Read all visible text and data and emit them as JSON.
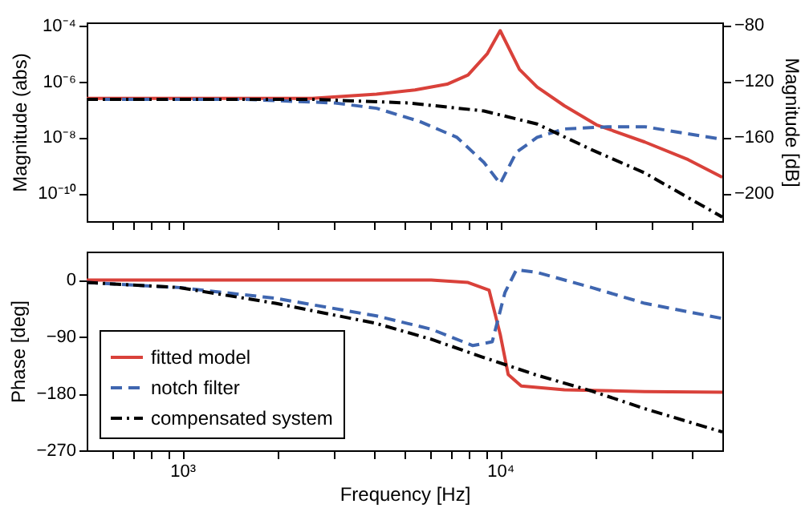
{
  "chart_data": [
    {
      "type": "line",
      "ylabel": "Magnitude (abs)",
      "y2label": "Magnitude [dB]",
      "log": "xy",
      "xlim": [
        500,
        50000
      ],
      "ylim": [
        1e-11,
        0.00013
      ],
      "y2lim": [
        -220,
        -78
      ],
      "xticks": [
        {
          "value": 600,
          "label": null
        },
        {
          "value": 700,
          "label": null
        },
        {
          "value": 800,
          "label": null
        },
        {
          "value": 900,
          "label": null
        },
        {
          "value": 1000,
          "label": null
        },
        {
          "value": 2000,
          "label": null
        },
        {
          "value": 3000,
          "label": null
        },
        {
          "value": 4000,
          "label": null
        },
        {
          "value": 5000,
          "label": null
        },
        {
          "value": 6000,
          "label": null
        },
        {
          "value": 7000,
          "label": null
        },
        {
          "value": 8000,
          "label": null
        },
        {
          "value": 9000,
          "label": null
        },
        {
          "value": 10000,
          "label": null
        },
        {
          "value": 20000,
          "label": null
        },
        {
          "value": 30000,
          "label": null
        },
        {
          "value": 40000,
          "label": null
        }
      ],
      "yticks": [
        {
          "value": 0.0001,
          "label": "10⁻⁴"
        },
        {
          "value": 1e-06,
          "label": "10⁻⁶"
        },
        {
          "value": 1e-08,
          "label": "10⁻⁸"
        },
        {
          "value": 1e-10,
          "label": "10⁻¹⁰"
        }
      ],
      "y2ticks": [
        {
          "value": -80,
          "label": "−80"
        },
        {
          "value": -120,
          "label": "−120"
        },
        {
          "value": -160,
          "label": "−160"
        },
        {
          "value": -200,
          "label": "−200"
        }
      ],
      "tick_labels": "y",
      "grid": false,
      "legend": false,
      "series": [
        {
          "color": "#d9413a",
          "line_style": "solid",
          "x": [
            500,
            869,
            1556,
            2563,
            4083,
            5395,
            6808,
            7922,
            9115,
            10000,
            11500,
            13070,
            15920,
            20090,
            28500,
            39000,
            50000
          ],
          "values": [
            2.5e-07,
            2.5e-07,
            2.5e-07,
            2.5e-07,
            3.5e-07,
            5e-07,
            8e-07,
            1.7e-06,
            1e-05,
            6.6e-05,
            2.7e-06,
            6.3e-07,
            1.35e-07,
            2.8e-08,
            6.8e-09,
            1.6e-09,
            3.7e-10
          ]
        },
        {
          "color": "#3f66b0",
          "line_style": "dashed",
          "x": [
            500,
            1556,
            3020,
            4083,
            5585,
            7310,
            8890,
            10000,
            11240,
            13070,
            15920,
            21800,
            28500,
            50000
          ],
          "values": [
            2.3e-07,
            2.3e-07,
            1.7e-07,
            1.1e-07,
            3.7e-08,
            1e-08,
            1.26e-09,
            2.2e-10,
            2.9e-09,
            1e-08,
            2e-08,
            2.4e-08,
            2.4e-08,
            8.5e-09
          ]
        },
        {
          "color": "#000000",
          "line_style": "dashdot",
          "x": [
            500,
            1556,
            2563,
            5150,
            8890,
            13070,
            19400,
            28500,
            50000
          ],
          "values": [
            2.3e-07,
            2.3e-07,
            2.3e-07,
            1.7e-07,
            8.8e-08,
            3e-08,
            3.6e-09,
            5.3e-10,
            1.4e-11
          ]
        }
      ]
    },
    {
      "type": "line",
      "xlabel": "Frequency [Hz]",
      "ylabel": "Phase [deg]",
      "log": "x",
      "xlim": [
        500,
        50000
      ],
      "ylim": [
        -270,
        45
      ],
      "xticks": [
        {
          "value": 600,
          "label": null
        },
        {
          "value": 700,
          "label": null
        },
        {
          "value": 800,
          "label": null
        },
        {
          "value": 900,
          "label": null
        },
        {
          "value": 1000,
          "label": "10³"
        },
        {
          "value": 2000,
          "label": null
        },
        {
          "value": 3000,
          "label": null
        },
        {
          "value": 4000,
          "label": null
        },
        {
          "value": 5000,
          "label": null
        },
        {
          "value": 6000,
          "label": null
        },
        {
          "value": 7000,
          "label": null
        },
        {
          "value": 8000,
          "label": null
        },
        {
          "value": 9000,
          "label": null
        },
        {
          "value": 10000,
          "label": "10⁴"
        },
        {
          "value": 20000,
          "label": null
        },
        {
          "value": 30000,
          "label": null
        },
        {
          "value": 40000,
          "label": null
        }
      ],
      "yticks": [
        0,
        {
          "value": -90,
          "label": "−90"
        },
        {
          "value": -180,
          "label": "−180"
        },
        {
          "value": -270,
          "label": "−270"
        }
      ],
      "grid": false,
      "legend": "bottom left",
      "series": [
        {
          "name": "fitted model",
          "color": "#d9413a",
          "line_style": "solid",
          "x": [
            500,
            1556,
            3020,
            6070,
            7922,
            9225,
            10000,
            10600,
            11650,
            15920,
            28500,
            50000
          ],
          "values": [
            0,
            0,
            0,
            0,
            -4,
            -16,
            -86,
            -150,
            -168,
            -174,
            -177,
            -178
          ]
        },
        {
          "name": "notch filter",
          "color": "#3f66b0",
          "line_style": "dashed",
          "x": [
            500,
            977,
            1963,
            4083,
            6070,
            8200,
            9440,
            10350,
            11240,
            13070,
            19400,
            28500,
            50000
          ],
          "values": [
            -4,
            -12,
            -29,
            -57,
            -78,
            -104,
            -98,
            -20,
            16,
            12,
            -12,
            -37,
            -61
          ]
        },
        {
          "name": "compensated system",
          "color": "#000000",
          "line_style": "dashdot",
          "x": [
            500,
            977,
            1963,
            4083,
            6070,
            8890,
            13070,
            19400,
            28500,
            50000
          ],
          "values": [
            -4,
            -12,
            -37,
            -69,
            -94,
            -123,
            -151,
            -176,
            -204,
            -241
          ]
        }
      ]
    }
  ]
}
